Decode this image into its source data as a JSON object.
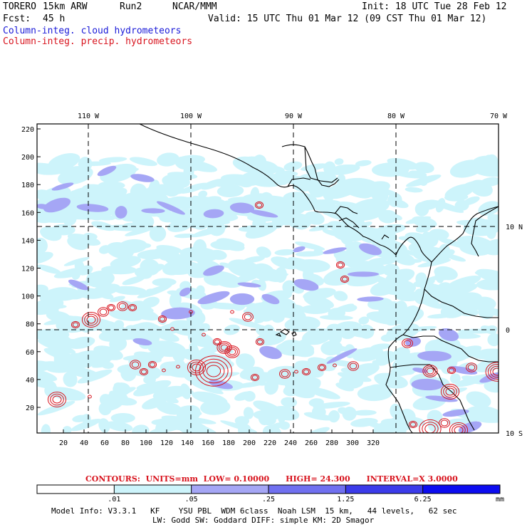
{
  "header": {
    "model": "TORERO",
    "resolution": "15km ARW",
    "run": "Run2",
    "org": "NCAR/MMM",
    "init": "Init: 18 UTC Tue 28 Feb 12",
    "fcst_label": "Fcst:",
    "fcst_value": "45 h",
    "valid": "Valid: 15 UTC Thu 01 Mar 12 (09 CST Thu 01 Mar 12)",
    "line1": "Column-integ. cloud hydrometeors",
    "line2": "Column-integ. precip. hydrometeors"
  },
  "top_longitudes": [
    "110 W",
    "100 W",
    "90 W",
    "80 W",
    "70 W"
  ],
  "right_latitudes": [
    "10 N",
    "0",
    "10 S"
  ],
  "y_ticks": [
    "220",
    "200",
    "180",
    "160",
    "140",
    "120",
    "100",
    "80",
    "60",
    "40",
    "20"
  ],
  "x_ticks": [
    "20",
    "40",
    "60",
    "80",
    "100",
    "120",
    "140",
    "160",
    "180",
    "200",
    "220",
    "240",
    "260",
    "280",
    "300",
    "320"
  ],
  "contour_info": {
    "label": "CONTOURS:",
    "units": "UNITS=mm",
    "low": "LOW= 0.10000",
    "high": "HIGH= 24.300",
    "interval": "INTERVAL=X 3.0000"
  },
  "colorbar": {
    "labels": [
      ".01",
      ".05",
      ".25",
      "1.25",
      "6.25"
    ],
    "unit": "mm",
    "colors": [
      "#ffffff",
      "#cdf4fb",
      "#a5a6f5",
      "#7070f0",
      "#3b3bea",
      "#0c0cf0"
    ]
  },
  "model_info": {
    "line1": "Model Info: V3.3.1   KF    YSU PBL  WDM 6class  Noah LSM  15 km,   44 levels,   62 sec",
    "line2": "LW: Godd SW: Goddard DIFF: simple KM: 2D Smagor"
  },
  "colors": {
    "cloud": "#cdf4fb",
    "cloud_mid": "#a5a6f5",
    "precip_contour": "#d8141e",
    "title_blue": "#1a1ad8"
  }
}
